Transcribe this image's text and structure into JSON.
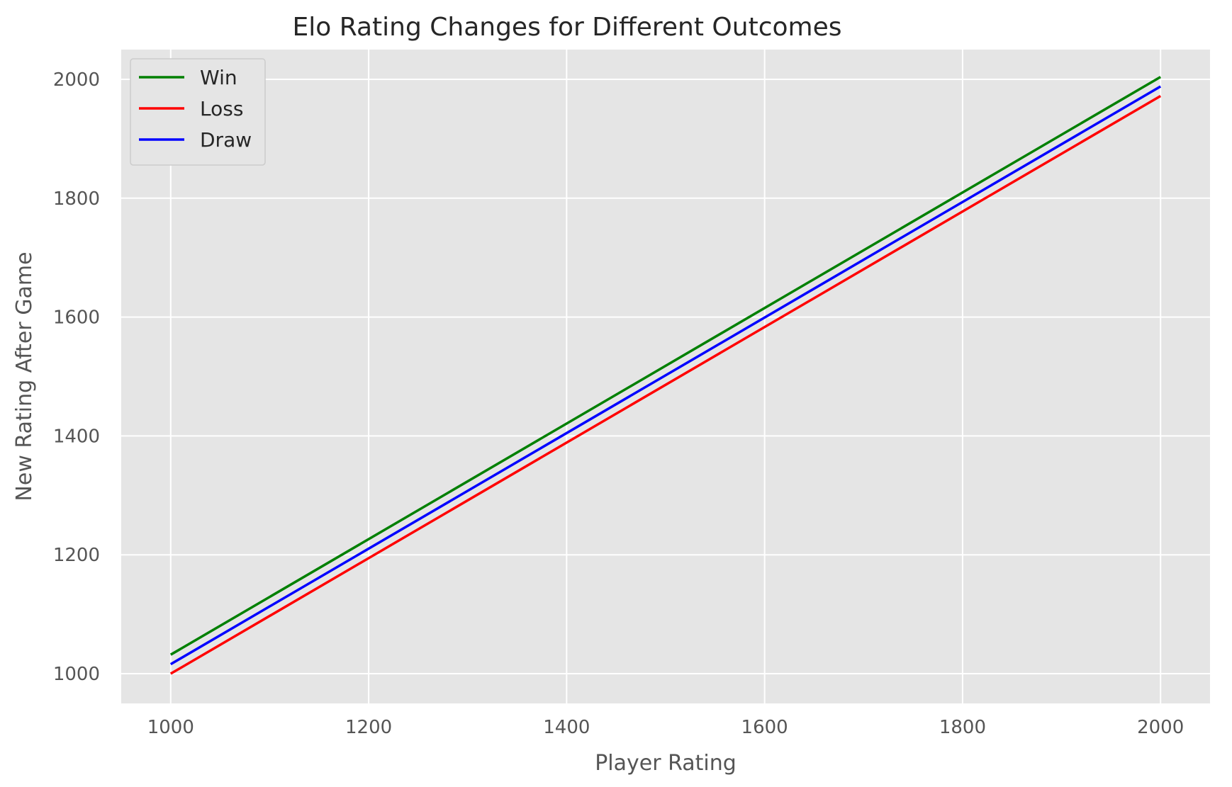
{
  "chart_data": {
    "type": "line",
    "title": "Elo Rating Changes for Different Outcomes",
    "xlabel": "Player Rating",
    "ylabel": "New Rating After Game",
    "xlim": [
      950,
      2050
    ],
    "ylim": [
      950,
      2050
    ],
    "xticks": [
      1000,
      1200,
      1400,
      1600,
      1800,
      2000
    ],
    "yticks": [
      1000,
      1200,
      1400,
      1600,
      1800,
      2000
    ],
    "x": [
      1000,
      2000
    ],
    "series": [
      {
        "name": "Win",
        "color": "#008000",
        "values": [
          1032,
          2004
        ]
      },
      {
        "name": "Loss",
        "color": "#ff0000",
        "values": [
          1000,
          1972
        ]
      },
      {
        "name": "Draw",
        "color": "#0000ff",
        "values": [
          1016,
          1988
        ]
      }
    ],
    "grid": true,
    "legend": "top-left",
    "plot_background": "#e5e5e5",
    "grid_color": "#ffffff"
  }
}
